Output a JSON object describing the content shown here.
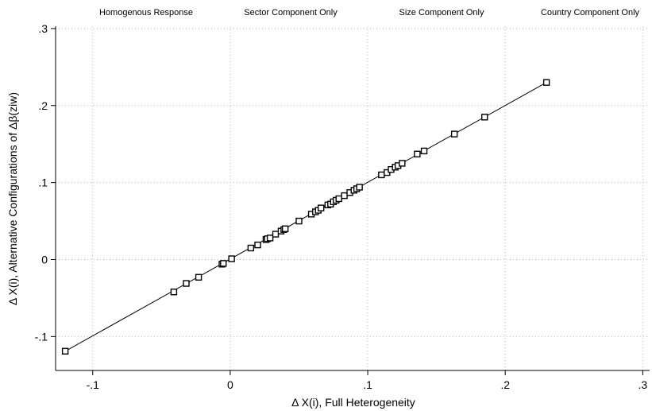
{
  "legend_entries": [
    "Homogenous Response",
    "Sector Component Only",
    "Size Component Only",
    "Country Component Only"
  ],
  "chart_data": {
    "type": "scatter",
    "title": "",
    "xlabel": "Δ X(i), Full Heterogeneity",
    "ylabel": "Δ X(i), Alternative Configurations of Δβ(ziw)",
    "xlim": [
      -0.127,
      0.305
    ],
    "ylim": [
      -0.144,
      0.303
    ],
    "x_ticks": [
      -0.1,
      0,
      0.1,
      0.2,
      0.3
    ],
    "x_tick_labels": [
      "-.1",
      "0",
      ".1",
      ".2",
      ".3"
    ],
    "y_ticks": [
      -0.1,
      0,
      0.1,
      0.2,
      0.3
    ],
    "y_tick_labels": [
      "-.1",
      "0",
      ".1",
      ".2",
      ".3"
    ],
    "grid": true,
    "legend_position": "top",
    "line_color": "#000000",
    "marker": "hollow-square",
    "series": [
      {
        "name": "Homogenous Response",
        "line": [
          [
            -0.12,
            -0.119
          ],
          [
            0.23,
            0.23
          ]
        ],
        "points": [
          [
            -0.12,
            -0.119
          ],
          [
            -0.041,
            -0.042
          ],
          [
            -0.032,
            -0.031
          ],
          [
            -0.023,
            -0.023
          ],
          [
            -0.006,
            -0.006
          ],
          [
            -0.005,
            -0.005
          ],
          [
            0.001,
            0.001
          ],
          [
            0.015,
            0.015
          ],
          [
            0.02,
            0.019
          ],
          [
            0.026,
            0.026
          ],
          [
            0.027,
            0.027
          ],
          [
            0.029,
            0.028
          ],
          [
            0.033,
            0.033
          ],
          [
            0.037,
            0.037
          ],
          [
            0.039,
            0.039
          ],
          [
            0.04,
            0.04
          ],
          [
            0.05,
            0.05
          ],
          [
            0.059,
            0.059
          ],
          [
            0.062,
            0.062
          ],
          [
            0.064,
            0.064
          ],
          [
            0.066,
            0.067
          ],
          [
            0.071,
            0.071
          ],
          [
            0.073,
            0.072
          ],
          [
            0.075,
            0.075
          ],
          [
            0.077,
            0.077
          ],
          [
            0.079,
            0.079
          ],
          [
            0.083,
            0.083
          ],
          [
            0.087,
            0.087
          ],
          [
            0.09,
            0.09
          ],
          [
            0.092,
            0.092
          ],
          [
            0.094,
            0.094
          ],
          [
            0.11,
            0.11
          ],
          [
            0.114,
            0.113
          ],
          [
            0.117,
            0.117
          ],
          [
            0.12,
            0.12
          ],
          [
            0.122,
            0.122
          ],
          [
            0.125,
            0.125
          ],
          [
            0.136,
            0.137
          ],
          [
            0.141,
            0.141
          ],
          [
            0.163,
            0.163
          ],
          [
            0.185,
            0.185
          ],
          [
            0.23,
            0.23
          ]
        ]
      },
      {
        "name": "Sector Component Only",
        "points": []
      },
      {
        "name": "Size Component Only",
        "points": []
      },
      {
        "name": "Country Component Only",
        "points": []
      }
    ]
  }
}
